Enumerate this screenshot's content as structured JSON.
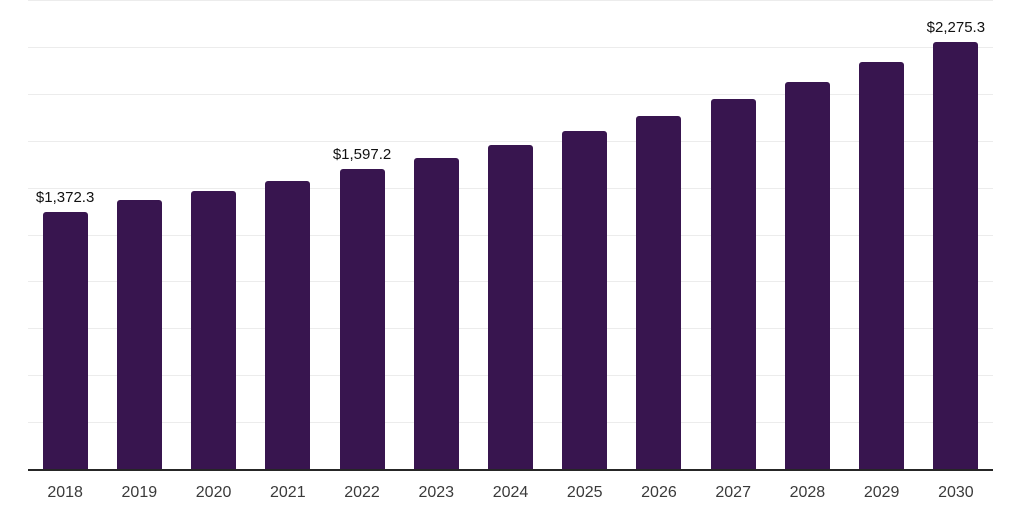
{
  "chart_data": {
    "type": "bar",
    "categories": [
      "2018",
      "2019",
      "2020",
      "2021",
      "2022",
      "2023",
      "2024",
      "2025",
      "2026",
      "2027",
      "2028",
      "2029",
      "2030"
    ],
    "values": [
      1372.3,
      1434.6,
      1482.6,
      1535.9,
      1597.2,
      1659.9,
      1729.2,
      1803.8,
      1882.0,
      1972.6,
      2064.8,
      2168.1,
      2275.3
    ],
    "value_labels": [
      "$1,372.3",
      null,
      null,
      null,
      "$1,597.2",
      null,
      null,
      null,
      null,
      null,
      null,
      null,
      "$2,275.3"
    ],
    "ylim": [
      0,
      2500
    ],
    "gridline_step": 250,
    "grid": true,
    "legend": false,
    "colors": {
      "bar": "#38154F",
      "gridline": "#ececec",
      "axis_line": "#262626",
      "value_label": "#111111",
      "tick_label": "#3a3a3a",
      "background": "#ffffff"
    }
  }
}
